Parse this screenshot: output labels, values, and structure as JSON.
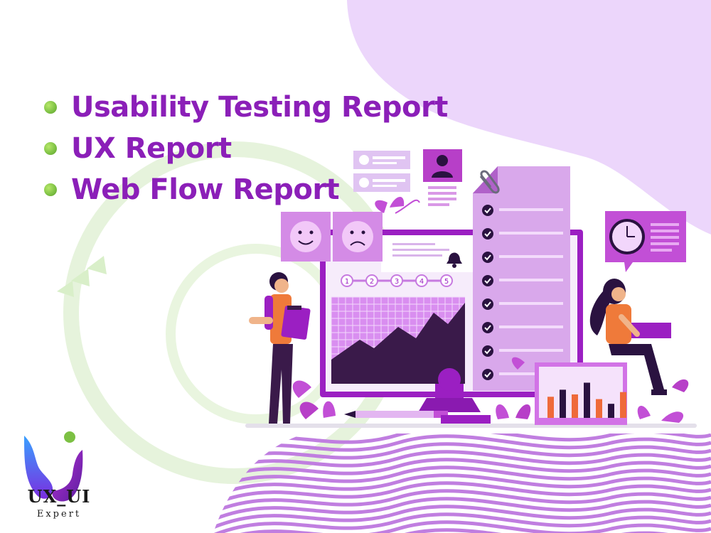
{
  "bullets": [
    {
      "label": "Usability Testing Report"
    },
    {
      "label": "UX Report"
    },
    {
      "label": "Web Flow Report"
    }
  ],
  "logo": {
    "title": "UX_UI",
    "subtitle": "Expert"
  },
  "colors": {
    "accent": "#8b1fb8",
    "bullet": "#7cc043",
    "blob": "#ecd6fb",
    "stripes": "#c07ee0"
  },
  "illustration": {
    "progress_steps": [
      "1",
      "2",
      "3",
      "4",
      "5"
    ],
    "checklist_count": 8,
    "bar_values": [
      0.45,
      0.6,
      0.5,
      0.75,
      0.4,
      0.3,
      0.55
    ],
    "icons": [
      "smile-face-icon",
      "sad-face-icon",
      "bell-icon",
      "clock-icon",
      "paperclip-icon",
      "user-card-icon",
      "checkmark-icon"
    ]
  }
}
